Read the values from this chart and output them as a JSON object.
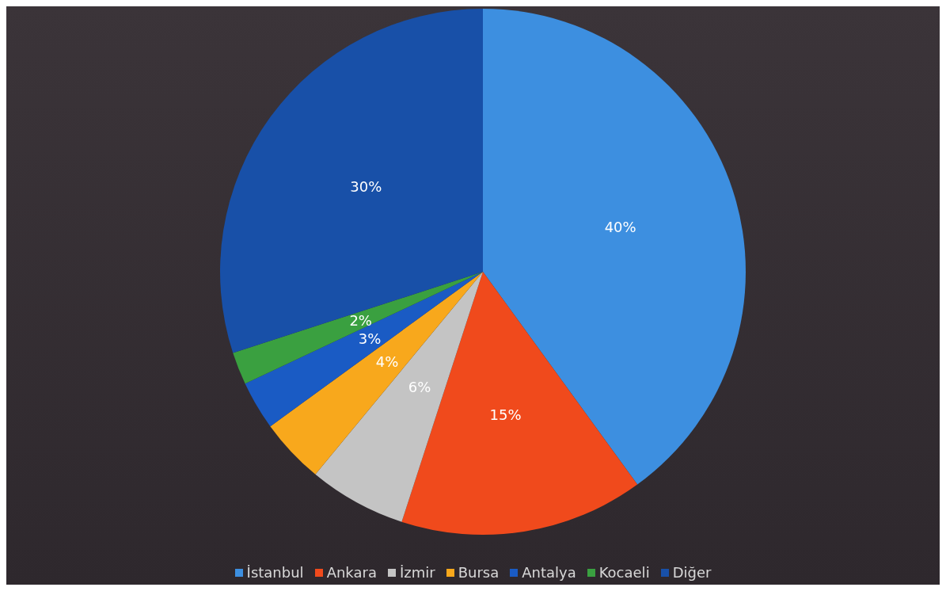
{
  "chart_data": {
    "type": "pie",
    "categories": [
      "İstanbul",
      "Ankara",
      "İzmir",
      "Bursa",
      "Antalya",
      "Kocaeli",
      "Diğer"
    ],
    "values": [
      40,
      15,
      6,
      4,
      3,
      2,
      30
    ],
    "colors": [
      "#3d8fe0",
      "#f04a1c",
      "#c4c4c4",
      "#f8a81c",
      "#1a5bc4",
      "#3aa040",
      "#1850a8"
    ],
    "value_labels": [
      "40%",
      "15%",
      "6%",
      "4%",
      "3%",
      "2%",
      "30%"
    ],
    "legend": "bottom"
  }
}
